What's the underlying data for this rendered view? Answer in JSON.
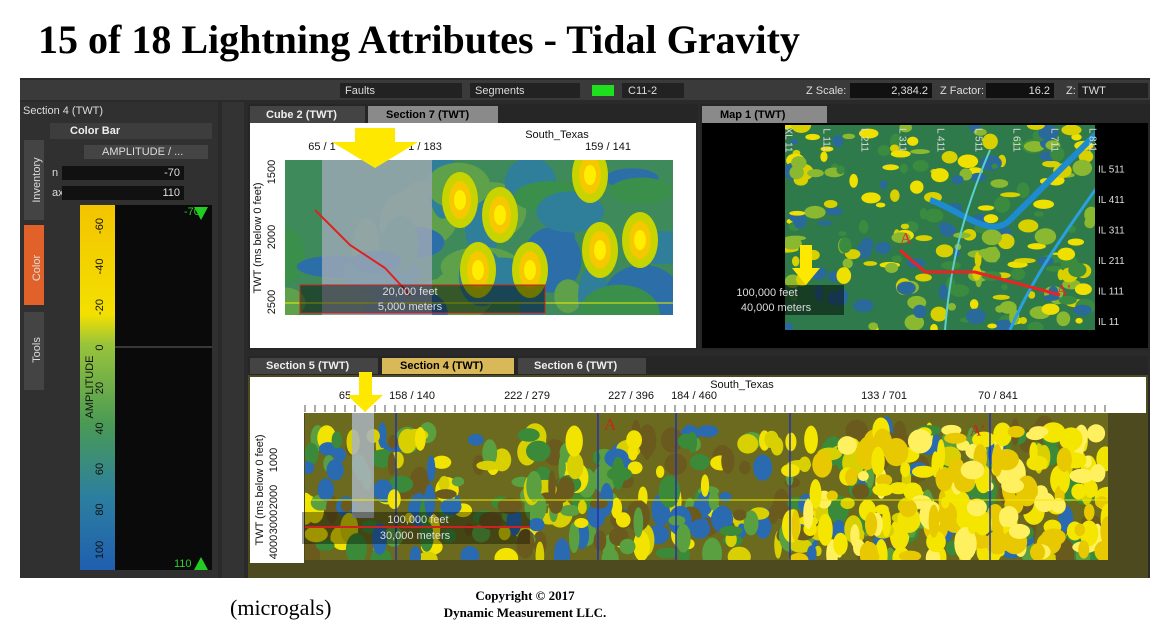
{
  "title": "15 of 18 Lightning Attributes - Tidal Gravity",
  "toolbar": {
    "faults": "Faults",
    "segments": "Segments",
    "volume": "C11-2",
    "zscale_label": "Z Scale:",
    "zscale": "2,384.2",
    "zfactor_label": "Z Factor:",
    "zfactor": "16.2",
    "z_label": "Z:",
    "z": "TWT"
  },
  "left_panel": {
    "title": "Section 4 (TWT)",
    "color_bar": "Color Bar",
    "attribute": "AMPLITUDE / ...",
    "min_label": "n",
    "min": "-70",
    "max_label": "ax",
    "max": "110",
    "tabs": [
      "Inventory",
      "Color",
      "Tools"
    ],
    "bar_ticks": [
      "-60",
      "-40",
      "-20",
      "0",
      "20",
      "40",
      "60",
      "80",
      "100"
    ],
    "bar_label": "AMPLITUDE",
    "bar_top": "-70",
    "bar_bottom": "110"
  },
  "section_view": {
    "tabs": [
      "Cube 2 (TWT)",
      "Section 7 (TWT)"
    ],
    "survey": "South_Texas",
    "top_labels": [
      "65 / 1",
      "1 / 183",
      "159 / 141"
    ],
    "y_label": "TWT (ms below 0 feet)",
    "y_ticks": [
      "1500",
      "2000",
      "2500"
    ],
    "scale": [
      "20,000 feet",
      "5,000 meters"
    ]
  },
  "map_view": {
    "tab": "Map 1 (TWT)",
    "top_labels": [
      "XL 11",
      "L 111",
      "L 211",
      "L 311",
      "L 411",
      "L 511",
      "L 611",
      "L 711",
      "L 811"
    ],
    "il_labels": [
      "IL 511",
      "IL 411",
      "IL 311",
      "IL 211",
      "IL 111",
      "IL 11"
    ],
    "a": "A",
    "a_prime": "A'",
    "scale": [
      "100,000 feet",
      "40,000 meters"
    ]
  },
  "bottom_view": {
    "tabs": [
      "Section 5 (TWT)",
      "Section 4 (TWT)",
      "Section 6 (TWT)"
    ],
    "survey": "South_Texas",
    "top_labels": [
      "65",
      "158 / 140",
      "222 / 279",
      "227 / 396",
      "184 / 460",
      "133 / 701",
      "70 / 841"
    ],
    "a": "A",
    "a_prime": "A'",
    "y_label": "TWT (ms below 0 feet)",
    "y_ticks": [
      "1000",
      "2000",
      "3000",
      "4000"
    ],
    "scale": [
      "100,000 feet",
      "30,000 meters"
    ]
  },
  "footer": {
    "units": "(microgals)",
    "copyright": "Copyright  © 2017",
    "company": "Dynamic Measurement LLC."
  }
}
